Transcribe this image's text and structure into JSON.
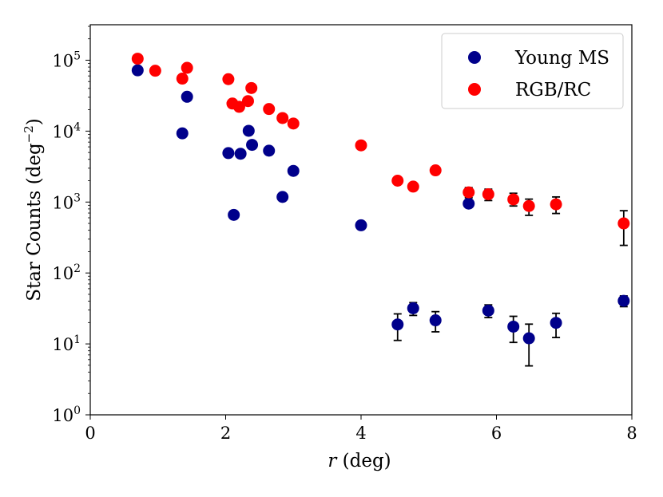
{
  "chart_data": {
    "type": "scatter",
    "title": "",
    "xlabel_var": "r",
    "xlabel_unit": "(deg)",
    "ylabel": "Star Counts (deg",
    "ylabel_exp": "−2",
    "ylabel_close": ")",
    "xlim": [
      0,
      8
    ],
    "ylim_log10": [
      0,
      5.5
    ],
    "y_scale": "log",
    "x_ticks": [
      0,
      2,
      4,
      6,
      8
    ],
    "x_tick_labels": [
      "0",
      "2",
      "4",
      "6",
      "8"
    ],
    "y_tick_exponents": [
      0,
      1,
      2,
      3,
      4,
      5
    ],
    "y_tick_base": "10",
    "legend_position": "top-right",
    "series": [
      {
        "name": "Young MS",
        "color": "#00008b",
        "points": [
          {
            "x": 0.7,
            "y": 72000
          },
          {
            "x": 1.36,
            "y": 9300
          },
          {
            "x": 1.43,
            "y": 30500
          },
          {
            "x": 2.04,
            "y": 4900
          },
          {
            "x": 2.12,
            "y": 660
          },
          {
            "x": 2.22,
            "y": 4800
          },
          {
            "x": 2.34,
            "y": 10100
          },
          {
            "x": 2.39,
            "y": 6400
          },
          {
            "x": 2.64,
            "y": 5300
          },
          {
            "x": 2.84,
            "y": 1180
          },
          {
            "x": 3.0,
            "y": 2750
          },
          {
            "x": 4.0,
            "y": 470
          },
          {
            "x": 4.54,
            "y": 18.8,
            "err_low": 11.2,
            "err_high": 26.5
          },
          {
            "x": 4.77,
            "y": 31.8,
            "err_low": 25.2,
            "err_high": 38.2
          },
          {
            "x": 5.1,
            "y": 21.5,
            "err_low": 14.8,
            "err_high": 28.5
          },
          {
            "x": 5.59,
            "y": 950
          },
          {
            "x": 5.88,
            "y": 29.5,
            "err_low": 23.5,
            "err_high": 35.5
          },
          {
            "x": 6.25,
            "y": 17.5,
            "err_low": 10.5,
            "err_high": 24.5
          },
          {
            "x": 6.48,
            "y": 12.0,
            "err_low": 4.9,
            "err_high": 19.0
          },
          {
            "x": 6.88,
            "y": 19.8,
            "err_low": 12.3,
            "err_high": 27.0
          },
          {
            "x": 7.88,
            "y": 40.5,
            "err_low": 33.5,
            "err_high": 47.5
          }
        ]
      },
      {
        "name": "RGB/RC",
        "color": "#ff0000",
        "points": [
          {
            "x": 0.7,
            "y": 105000
          },
          {
            "x": 0.96,
            "y": 71000
          },
          {
            "x": 1.36,
            "y": 55000
          },
          {
            "x": 1.43,
            "y": 78000
          },
          {
            "x": 2.04,
            "y": 54000
          },
          {
            "x": 2.1,
            "y": 24500
          },
          {
            "x": 2.2,
            "y": 22000
          },
          {
            "x": 2.33,
            "y": 26500
          },
          {
            "x": 2.38,
            "y": 40500
          },
          {
            "x": 2.64,
            "y": 20500
          },
          {
            "x": 2.84,
            "y": 15300
          },
          {
            "x": 3.0,
            "y": 12800
          },
          {
            "x": 4.0,
            "y": 6300
          },
          {
            "x": 4.54,
            "y": 2000
          },
          {
            "x": 4.77,
            "y": 1650
          },
          {
            "x": 5.1,
            "y": 2800
          },
          {
            "x": 5.59,
            "y": 1370,
            "err_low": 1150,
            "err_high": 1600
          },
          {
            "x": 5.88,
            "y": 1290,
            "err_low": 1050,
            "err_high": 1520
          },
          {
            "x": 6.25,
            "y": 1090,
            "err_low": 880,
            "err_high": 1330
          },
          {
            "x": 6.48,
            "y": 880,
            "err_low": 650,
            "err_high": 1100
          },
          {
            "x": 6.88,
            "y": 930,
            "err_low": 690,
            "err_high": 1180
          },
          {
            "x": 7.88,
            "y": 500,
            "err_low": 245,
            "err_high": 755
          }
        ]
      }
    ]
  }
}
